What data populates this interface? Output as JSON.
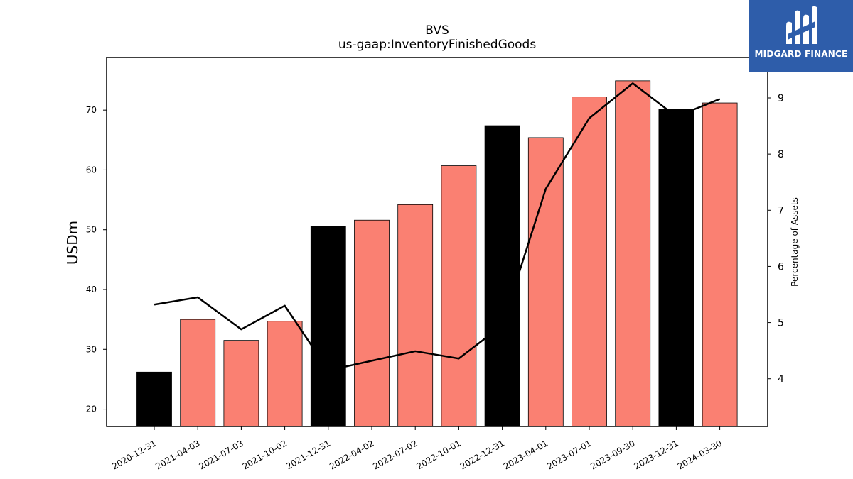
{
  "chart_data": {
    "type": "bar",
    "title": "BVS",
    "subtitle": "us-gaap:InventoryFinishedGoods",
    "ylabel": "USDm",
    "y2label": "Percentage of Assets",
    "categories": [
      "2020-12-31",
      "2021-04-03",
      "2021-07-03",
      "2021-10-02",
      "2021-12-31",
      "2022-04-02",
      "2022-07-02",
      "2022-10-01",
      "2022-12-31",
      "2023-04-01",
      "2023-07-01",
      "2023-09-30",
      "2023-12-31",
      "2024-03-30"
    ],
    "values": [
      26.2,
      35.0,
      31.5,
      34.7,
      50.6,
      51.6,
      54.2,
      60.7,
      67.4,
      65.4,
      72.2,
      74.9,
      70.1,
      71.2
    ],
    "bar_colors": [
      "#000000",
      "#fa8072",
      "#fa8072",
      "#fa8072",
      "#000000",
      "#fa8072",
      "#fa8072",
      "#fa8072",
      "#000000",
      "#fa8072",
      "#fa8072",
      "#fa8072",
      "#000000",
      "#fa8072"
    ],
    "line_values": [
      5.32,
      5.45,
      4.88,
      5.3,
      4.15,
      4.32,
      4.49,
      4.36,
      4.95,
      7.38,
      8.64,
      9.26,
      8.67,
      8.98
    ],
    "ylim": [
      17.1,
      78.8
    ],
    "yticks": [
      20,
      30,
      40,
      50,
      60,
      70
    ],
    "y2lim": [
      3.15,
      9.72
    ],
    "y2ticks": [
      4,
      5,
      6,
      7,
      8,
      9
    ],
    "grid": false
  },
  "logo": {
    "text": "MIDGARD FINANCE"
  }
}
